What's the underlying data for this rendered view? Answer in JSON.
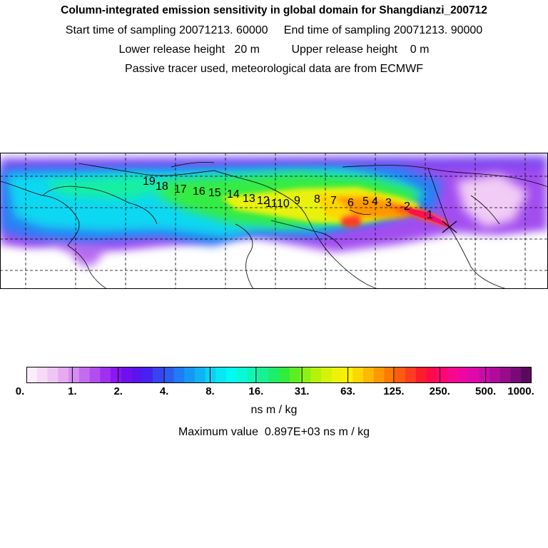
{
  "header": {
    "title": "Column-integrated emission sensitivity in global domain for Shangdianzi_200712",
    "sampling_line": "Start time of sampling 20071213. 60000     End time of sampling 20071213. 90000",
    "release_line": "Lower release height   20 m          Upper release height    0 m",
    "tracer_line": "Passive tracer used, meteorological data are from ECMWF"
  },
  "map": {
    "trajectory_labels": [
      "1",
      "2",
      "3",
      "4",
      "5",
      "6",
      "7",
      "8",
      "9",
      "10",
      "11",
      "12",
      "13",
      "14",
      "15",
      "16",
      "17",
      "18",
      "19"
    ],
    "receptor_marker": "receptor-cross"
  },
  "colorbar": {
    "tick_labels": [
      "0.",
      "1.",
      "2.",
      "4.",
      "8.",
      "16.",
      "31.",
      "63.",
      "125.",
      "250.",
      "500.",
      "1000."
    ],
    "colors": [
      "#fbeefb",
      "#f6daf7",
      "#efc6f3",
      "#e6aaef",
      "#d68ef0",
      "#c46cf0",
      "#b24ef0",
      "#a030f0",
      "#8a18f0",
      "#7010ee",
      "#5a14ee",
      "#4622f0",
      "#3844ee",
      "#2c5cf0",
      "#1e7cf4",
      "#1498f4",
      "#10b2f4",
      "#0cd0f4",
      "#08e8f2",
      "#00fcf0",
      "#08f8d8",
      "#10f4b4",
      "#18f094",
      "#1cee6c",
      "#30ec3c",
      "#5cee20",
      "#8ef014",
      "#b4f20c",
      "#d4f20a",
      "#eef20a",
      "#fcf000",
      "#fed600",
      "#feb800",
      "#fe9800",
      "#fe7a00",
      "#fe5a10",
      "#fe3c20",
      "#fc1c2c",
      "#fc0a4c",
      "#fc0870",
      "#f8088c",
      "#ec08a0",
      "#dc0aa8",
      "#c80ca8",
      "#b00c9c",
      "#960c8a",
      "#7a0a78",
      "#5a0a5c"
    ],
    "units": "ns m / kg",
    "maximum_line": "Maximum value  0.897E+03 ns m / kg"
  }
}
